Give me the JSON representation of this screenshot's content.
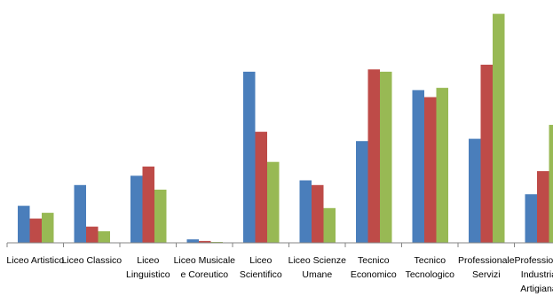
{
  "chart_data": {
    "type": "bar",
    "title": "",
    "xlabel": "",
    "ylabel": "",
    "grid": false,
    "legend": "none",
    "ylim": [
      0,
      100
    ],
    "categories": [
      [
        "Liceo Artistico"
      ],
      [
        "Liceo Classico"
      ],
      [
        "Liceo",
        "Linguistico"
      ],
      [
        "Liceo Musicale",
        "e Coreutico"
      ],
      [
        "Liceo",
        "Scientifico"
      ],
      [
        "Liceo Scienze",
        "Umane"
      ],
      [
        "Tecnico",
        "Economico"
      ],
      [
        "Tecnico",
        "Tecnologico"
      ],
      [
        "Professionale",
        "Servizi"
      ],
      [
        "Professionale",
        "Industria e",
        "Artigianato"
      ]
    ],
    "series": [
      {
        "color": "#4a7ebb",
        "values": [
          16,
          25,
          29,
          1.5,
          74,
          27,
          44,
          66,
          45,
          21
        ]
      },
      {
        "color": "#be4b48",
        "values": [
          10.5,
          7,
          33,
          0.8,
          48,
          25,
          75,
          63,
          77,
          31
        ]
      },
      {
        "color": "#98b954",
        "values": [
          13,
          5,
          23,
          0.4,
          35,
          15,
          74,
          67,
          99,
          51
        ]
      }
    ]
  }
}
